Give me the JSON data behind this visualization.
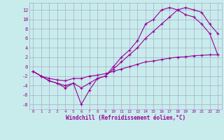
{
  "title": "",
  "xlabel": "Windchill (Refroidissement éolien,°C)",
  "bg_color": "#c8ecec",
  "grid_color": "#aaaacc",
  "line_color": "#990099",
  "xlim": [
    -0.5,
    23.5
  ],
  "ylim": [
    -9,
    13.5
  ],
  "xticks": [
    0,
    1,
    2,
    3,
    4,
    5,
    6,
    7,
    8,
    9,
    10,
    11,
    12,
    13,
    14,
    15,
    16,
    17,
    18,
    19,
    20,
    21,
    22,
    23
  ],
  "yticks": [
    -8,
    -6,
    -4,
    -2,
    0,
    2,
    4,
    6,
    8,
    10,
    12
  ],
  "line1_x": [
    0,
    1,
    2,
    3,
    4,
    5,
    6,
    7,
    8,
    9,
    10,
    11,
    12,
    13,
    14,
    15,
    16,
    17,
    18,
    19,
    20,
    21,
    22,
    23
  ],
  "line1_y": [
    -1,
    -2,
    -3,
    -3.5,
    -4.5,
    -3.5,
    -8,
    -5,
    -2.5,
    -2,
    0,
    2,
    3.5,
    5.5,
    9,
    10,
    12,
    12.5,
    12,
    11,
    10.5,
    9,
    7,
    2.5
  ],
  "line2_x": [
    0,
    1,
    2,
    3,
    4,
    5,
    6,
    7,
    8,
    9,
    10,
    11,
    12,
    13,
    14,
    15,
    16,
    17,
    18,
    19,
    20,
    21,
    22,
    23
  ],
  "line2_y": [
    -1,
    -2,
    -3,
    -3.5,
    -4,
    -3.5,
    -4.5,
    -3.5,
    -2.5,
    -2,
    -0.5,
    1,
    2.5,
    4,
    6,
    7.5,
    9,
    10.5,
    12,
    12.5,
    12,
    11.5,
    9,
    7
  ],
  "line3_x": [
    0,
    1,
    2,
    3,
    4,
    5,
    6,
    7,
    8,
    9,
    10,
    11,
    12,
    13,
    14,
    15,
    16,
    17,
    18,
    19,
    20,
    21,
    22,
    23
  ],
  "line3_y": [
    -1,
    -2,
    -2.5,
    -2.8,
    -3,
    -2.5,
    -2.5,
    -2,
    -1.8,
    -1.5,
    -1,
    -0.5,
    0,
    0.5,
    1,
    1.2,
    1.5,
    1.8,
    2,
    2.1,
    2.3,
    2.4,
    2.5,
    2.5
  ],
  "marker": "+",
  "markersize": 3,
  "linewidth": 0.8
}
